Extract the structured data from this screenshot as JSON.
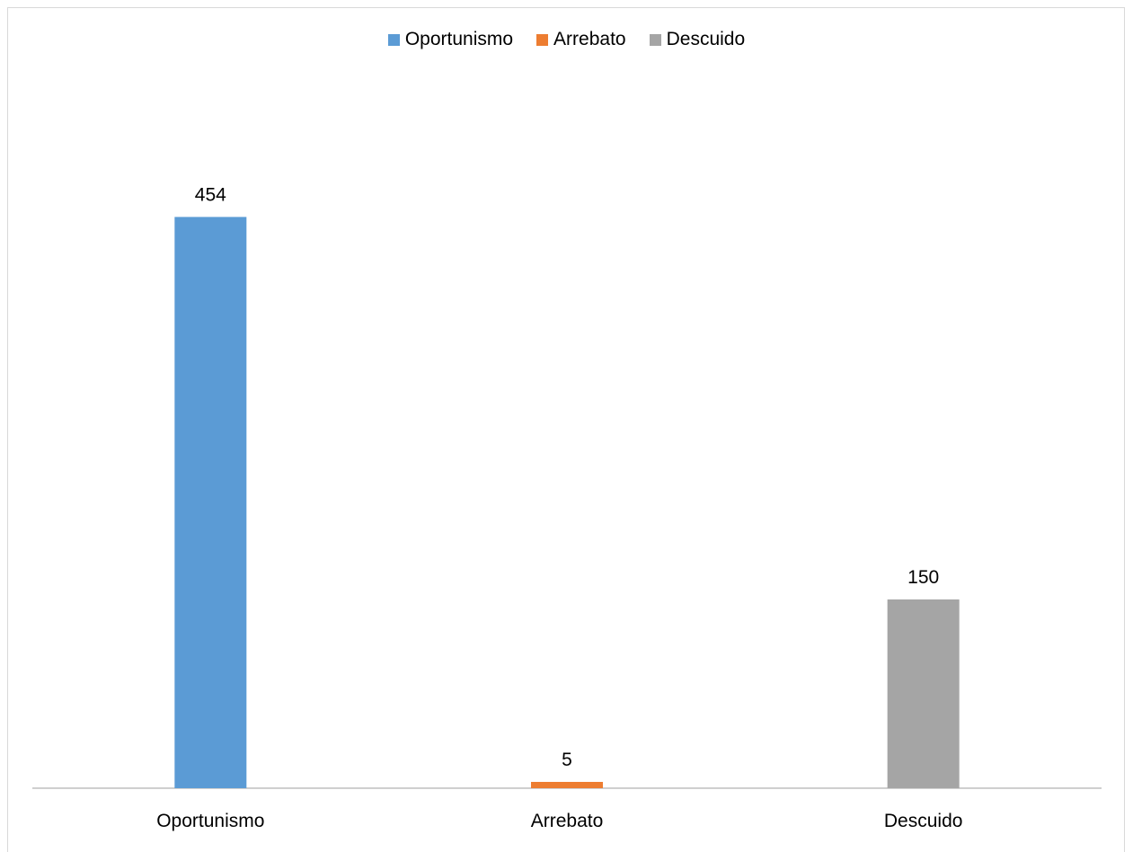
{
  "chart_data": {
    "type": "bar",
    "categories": [
      "Oportunismo",
      "Arrebato",
      "Descuido"
    ],
    "series": [
      {
        "name": "Oportunismo",
        "values": [
          454,
          null,
          null
        ],
        "color": "#5b9bd5"
      },
      {
        "name": "Arrebato",
        "values": [
          null,
          5,
          null
        ],
        "color": "#ed7d31"
      },
      {
        "name": "Descuido",
        "values": [
          null,
          null,
          150
        ],
        "color": "#a5a5a5"
      }
    ],
    "data_labels": [
      "454",
      "5",
      "150"
    ],
    "legend_position": "top",
    "grid": false,
    "ylim": [
      0,
      500
    ]
  }
}
